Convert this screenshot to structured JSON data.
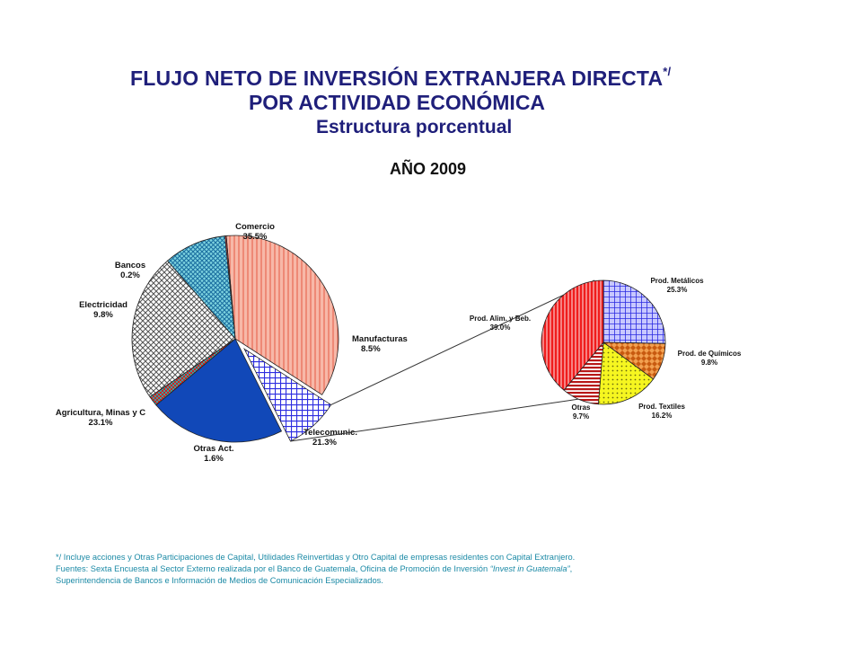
{
  "title": {
    "line1": "FLUJO NETO DE INVERSIÓN EXTRANJERA DIRECTA",
    "line1_sup": "*/",
    "line2": "POR ACTIVIDAD ECONÓMICA",
    "subtitle": "Estructura porcentual",
    "year": "AÑO 2009"
  },
  "chart_data": [
    {
      "type": "pie",
      "title": "AÑO 2009",
      "series": [
        {
          "label": "Comercio",
          "value": 35.5,
          "value_label": "35.5%",
          "color": "#f4a290",
          "pattern": "vertical-lines"
        },
        {
          "label": "Manufacturas",
          "value": 8.5,
          "value_label": "8.5%",
          "color": "#2d2de0",
          "pattern": "grid",
          "exploded": true
        },
        {
          "label": "Telecomunic.",
          "value": 21.3,
          "value_label": "21.3%",
          "color": "#1148b8",
          "pattern": "solid"
        },
        {
          "label": "Otras Act.",
          "value": 1.6,
          "value_label": "1.6%",
          "color": "#d02020",
          "pattern": "checker"
        },
        {
          "label": "Agricultura, Minas y C",
          "value": 23.1,
          "value_label": "23.1%",
          "color": "#b8b8b8",
          "pattern": "crosshatch"
        },
        {
          "label": "Electricidad",
          "value": 9.8,
          "value_label": "9.8%",
          "color": "#2aa5c0",
          "pattern": "dense-grid"
        },
        {
          "label": "Bancos",
          "value": 0.2,
          "value_label": "0.2%",
          "color": "#e84848",
          "pattern": "solid"
        }
      ]
    },
    {
      "type": "pie",
      "title": "Manufacturas",
      "series": [
        {
          "label": "Prod. Metálicos",
          "value": 25.3,
          "value_label": "25.3%",
          "color": "#3a3ae6",
          "pattern": "grid"
        },
        {
          "label": "Prod. de Químicos",
          "value": 9.8,
          "value_label": "9.8%",
          "color": "#e07018",
          "pattern": "diamonds"
        },
        {
          "label": "Prod. Textiles",
          "value": 16.2,
          "value_label": "16.2%",
          "color": "#f2f21c",
          "pattern": "dots"
        },
        {
          "label": "Otras",
          "value": 9.7,
          "value_label": "9.7%",
          "color": "#b81818",
          "pattern": "horizontal-lines"
        },
        {
          "label": "Prod. Alim. y Beb.",
          "value": 39.0,
          "value_label": "39.0%",
          "color": "#f01c1c",
          "pattern": "vertical-lines"
        }
      ]
    }
  ],
  "notes": {
    "line1": "*/ Incluye acciones y Otras Participaciones de Capital, Utilidades Reinvertidas y Otro Capital de empresas residentes con Capital Extranjero.",
    "line2_prefix": "Fuentes: Sexta Encuesta al Sector Externo realizada por el Banco de Guatemala, Oficina de Promoción de Inversión ",
    "line2_italic": "“Invest in Guatemala”",
    "line2_suffix": ",",
    "line3": "Superintendencia de Bancos e Información de Medios de Comunicación Especializados."
  }
}
